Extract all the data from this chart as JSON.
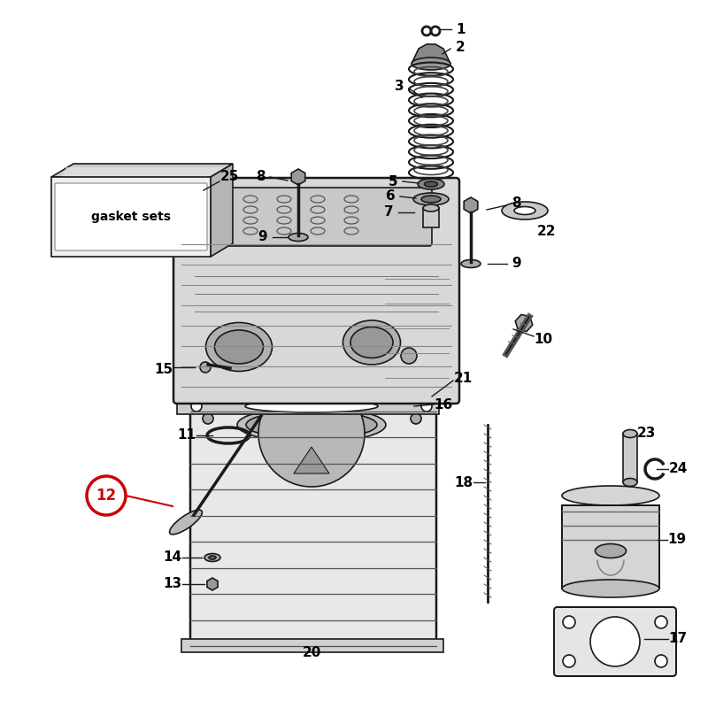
{
  "bg_color": "#ffffff",
  "line_color": "#1a1a1a",
  "highlight_color": "#cc0000",
  "gasket_box_label": "gasket sets",
  "figsize": [
    8.0,
    8.0
  ],
  "dpi": 100,
  "lw": 1.2
}
